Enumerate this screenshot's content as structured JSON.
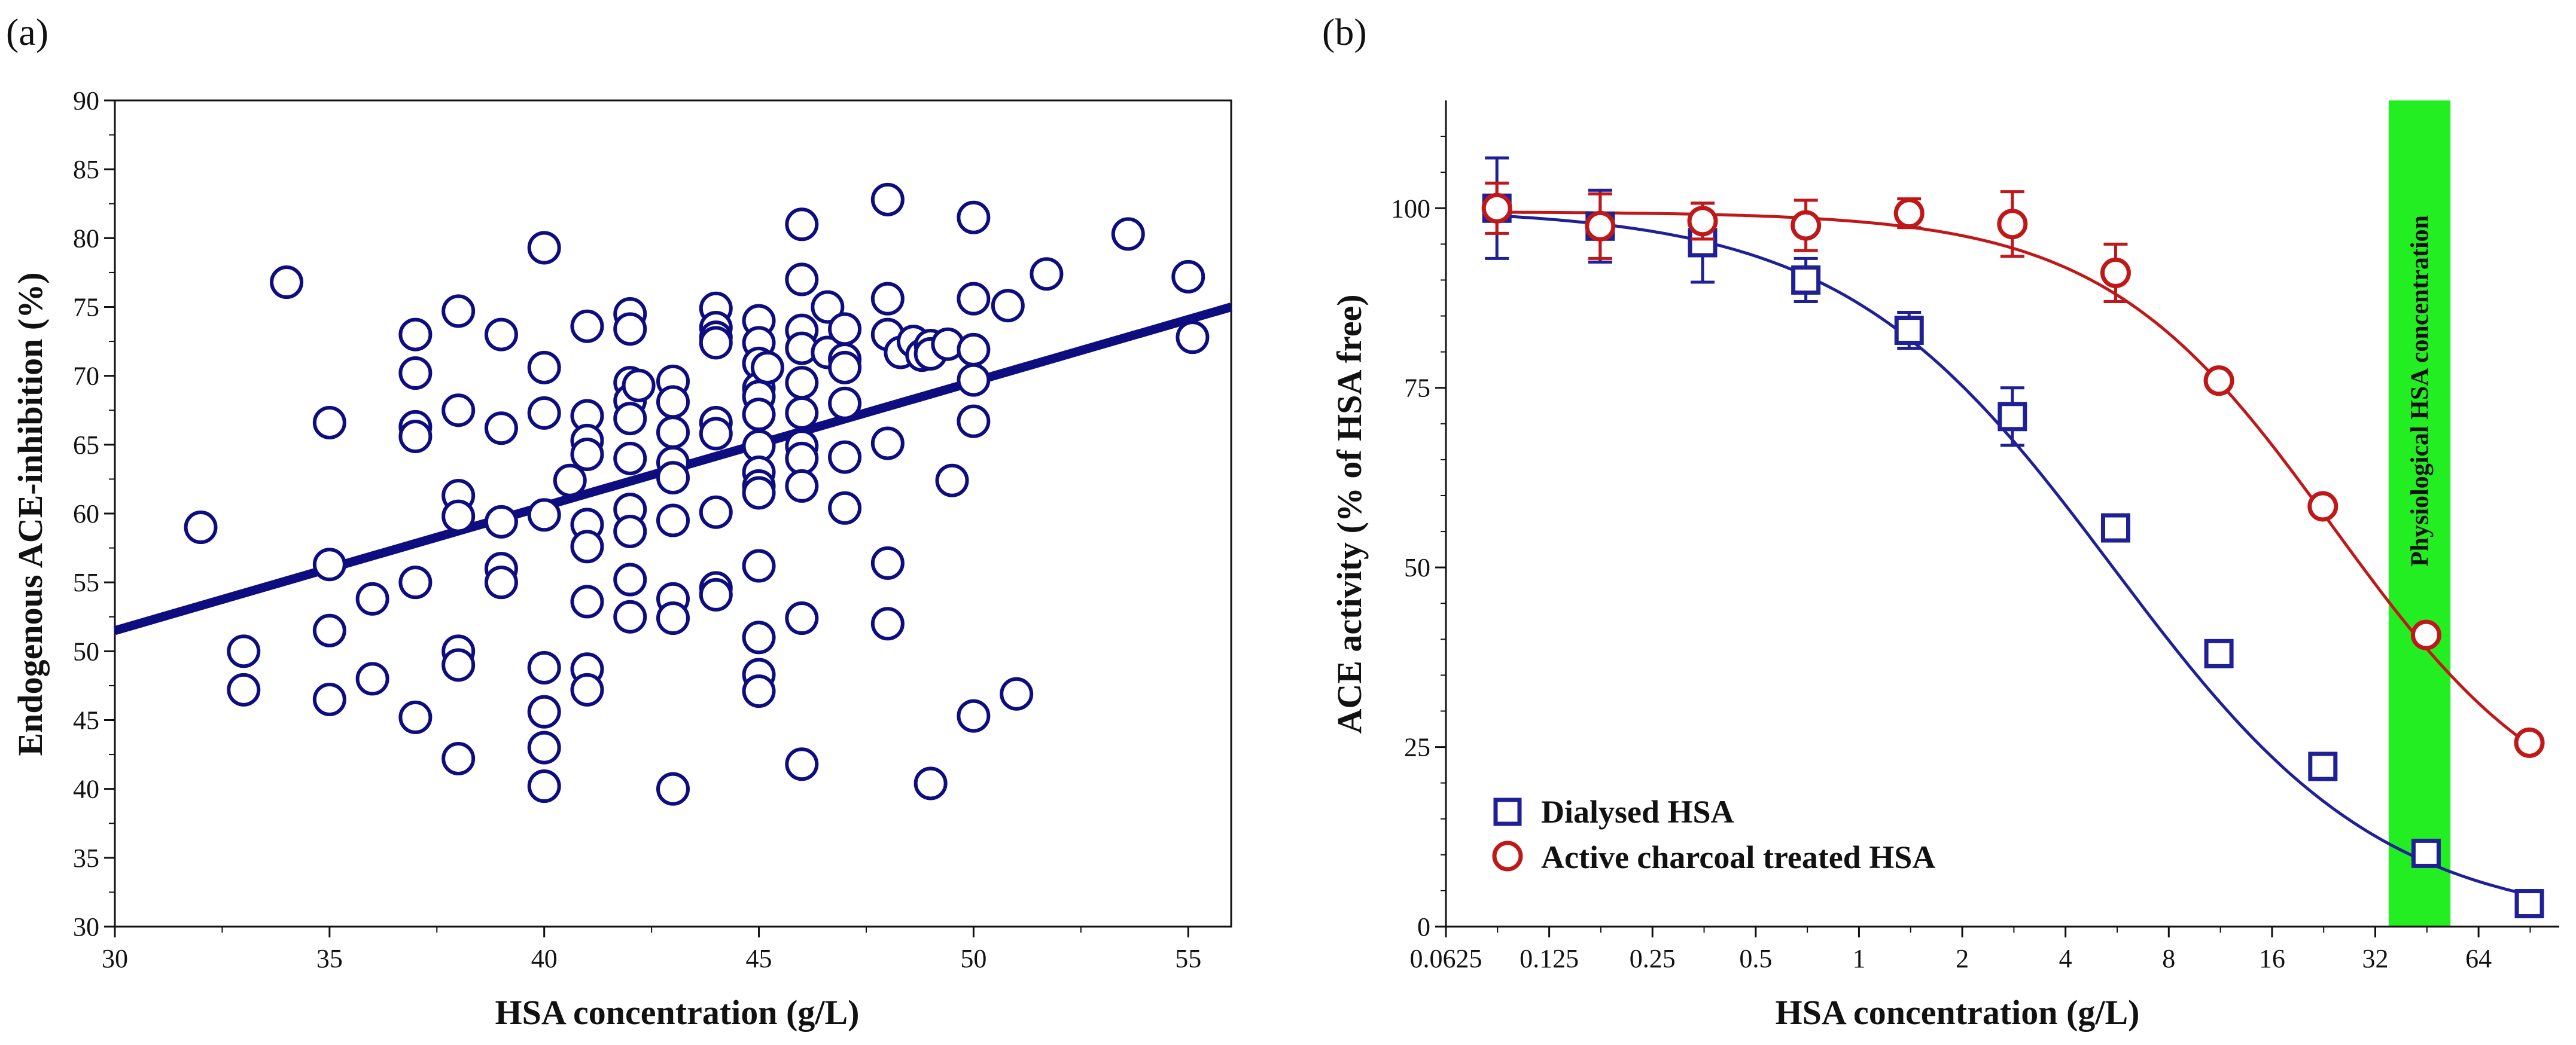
{
  "chart_data": [
    {
      "panel_label": "(a)",
      "type": "scatter",
      "xlabel": "HSA concentration (g/L)",
      "ylabel": "Endogenous ACE-inhibition (%)",
      "xlim": [
        30,
        56
      ],
      "ylim": [
        30,
        90
      ],
      "xticks": [
        30,
        35,
        40,
        45,
        50,
        55
      ],
      "yticks": [
        30,
        35,
        40,
        45,
        50,
        55,
        60,
        65,
        70,
        75,
        80,
        85,
        90
      ],
      "marker_color": "#0d0d80",
      "regression_line": {
        "x": [
          30,
          56
        ],
        "y": [
          51.5,
          75.0
        ]
      },
      "points": [
        [
          32,
          59
        ],
        [
          33,
          50
        ],
        [
          33,
          47.2
        ],
        [
          34,
          76.8
        ],
        [
          35,
          66.6
        ],
        [
          35,
          56.3
        ],
        [
          35,
          51.5
        ],
        [
          35,
          46.5
        ],
        [
          36,
          53.8
        ],
        [
          36,
          48
        ],
        [
          37,
          73
        ],
        [
          37,
          70.2
        ],
        [
          37,
          66.3
        ],
        [
          37,
          65.6
        ],
        [
          37,
          55
        ],
        [
          37,
          45.2
        ],
        [
          38,
          74.7
        ],
        [
          38,
          67.5
        ],
        [
          38,
          61.3
        ],
        [
          38,
          59.8
        ],
        [
          38,
          50
        ],
        [
          38,
          49
        ],
        [
          38,
          42.2
        ],
        [
          39,
          73
        ],
        [
          39,
          66.2
        ],
        [
          39,
          59.4
        ],
        [
          39,
          56
        ],
        [
          39,
          55
        ],
        [
          40,
          79.3
        ],
        [
          40,
          70.6
        ],
        [
          40,
          67.3
        ],
        [
          40,
          59.9
        ],
        [
          40,
          48.8
        ],
        [
          40,
          45.6
        ],
        [
          40,
          43
        ],
        [
          40,
          40.2
        ],
        [
          40.6,
          62.4
        ],
        [
          41,
          73.6
        ],
        [
          41,
          67.1
        ],
        [
          41,
          65.3
        ],
        [
          41,
          64.3
        ],
        [
          41,
          59.2
        ],
        [
          41,
          57.6
        ],
        [
          41,
          53.6
        ],
        [
          41,
          48.7
        ],
        [
          41,
          47.2
        ],
        [
          42,
          74.5
        ],
        [
          42,
          73.4
        ],
        [
          42,
          69.5
        ],
        [
          42,
          68.2
        ],
        [
          42,
          66.9
        ],
        [
          42,
          64
        ],
        [
          42,
          60.3
        ],
        [
          42,
          58.7
        ],
        [
          42,
          55.2
        ],
        [
          42,
          52.5
        ],
        [
          42.2,
          69.3
        ],
        [
          43,
          69.6
        ],
        [
          43,
          68.1
        ],
        [
          43,
          65.9
        ],
        [
          43,
          63.7
        ],
        [
          43,
          62.6
        ],
        [
          43,
          59.5
        ],
        [
          43,
          53.8
        ],
        [
          43,
          52.4
        ],
        [
          43,
          40
        ],
        [
          44,
          74.9
        ],
        [
          44,
          73.5
        ],
        [
          44,
          72.8
        ],
        [
          44,
          72.4
        ],
        [
          44,
          66.6
        ],
        [
          44,
          65.8
        ],
        [
          44,
          60.1
        ],
        [
          44,
          54.6
        ],
        [
          44,
          54.1
        ],
        [
          45,
          74
        ],
        [
          45,
          72.4
        ],
        [
          45,
          70.9
        ],
        [
          45,
          69.1
        ],
        [
          45,
          68.5
        ],
        [
          45,
          67.2
        ],
        [
          45,
          64.9
        ],
        [
          45,
          63
        ],
        [
          45,
          62
        ],
        [
          45,
          61.5
        ],
        [
          45,
          56.2
        ],
        [
          45,
          51
        ],
        [
          45,
          48.3
        ],
        [
          45,
          47.1
        ],
        [
          45.2,
          70.6
        ],
        [
          46,
          81
        ],
        [
          46,
          77
        ],
        [
          46,
          73.3
        ],
        [
          46,
          72
        ],
        [
          46,
          69.5
        ],
        [
          46,
          67.3
        ],
        [
          46,
          64.9
        ],
        [
          46,
          64
        ],
        [
          46,
          62
        ],
        [
          46,
          52.4
        ],
        [
          46,
          41.8
        ],
        [
          46.6,
          71.7
        ],
        [
          46.6,
          75
        ],
        [
          47,
          73.4
        ],
        [
          47,
          71.2
        ],
        [
          47,
          70.6
        ],
        [
          47,
          68
        ],
        [
          47,
          64.1
        ],
        [
          47,
          60.4
        ],
        [
          48,
          82.8
        ],
        [
          48,
          75.6
        ],
        [
          48,
          73
        ],
        [
          48,
          65.1
        ],
        [
          48,
          56.4
        ],
        [
          48,
          52
        ],
        [
          48.3,
          71.7
        ],
        [
          48.6,
          72.5
        ],
        [
          48.8,
          71.5
        ],
        [
          49,
          72.2
        ],
        [
          49,
          71.6
        ],
        [
          49,
          40.4
        ],
        [
          49.4,
          72.3
        ],
        [
          49.5,
          62.4
        ],
        [
          50,
          81.5
        ],
        [
          50,
          75.6
        ],
        [
          50,
          71.9
        ],
        [
          50,
          69.7
        ],
        [
          50,
          66.7
        ],
        [
          50,
          45.3
        ],
        [
          50.8,
          75.1
        ],
        [
          51,
          46.9
        ],
        [
          51.7,
          77.4
        ],
        [
          53.6,
          80.3
        ],
        [
          55,
          77.2
        ],
        [
          55.1,
          72.8
        ]
      ]
    },
    {
      "panel_label": "(b)",
      "type": "line",
      "x_scale": "log2",
      "xlabel": "HSA concentration (g/L)",
      "ylabel": "ACE activity (% of HSA free)",
      "xlim": [
        0.0625,
        110
      ],
      "ylim": [
        0,
        115
      ],
      "xticks": [
        0.0625,
        0.125,
        0.25,
        0.5,
        1,
        2,
        4,
        8,
        16,
        32,
        64
      ],
      "xtick_labels": [
        "0.0625",
        "0.125",
        "0.25",
        "0.5",
        "1",
        "2",
        "4",
        "8",
        "16",
        "32",
        "64"
      ],
      "yticks": [
        0,
        25,
        50,
        75,
        100
      ],
      "band": {
        "x_range": [
          35,
          53
        ],
        "color": "#22ee22",
        "label": "Physiological HSA concentration"
      },
      "series": [
        {
          "name": "Dialysed HSA",
          "color": "#1f1f96",
          "marker": "square",
          "x": [
            0.088,
            0.176,
            0.35,
            0.7,
            1.4,
            2.8,
            5.6,
            11.2,
            22.5,
            45,
            90
          ],
          "y": [
            100,
            97.5,
            95.2,
            90,
            83,
            71,
            55.5,
            38,
            22.3,
            10.2,
            3.2
          ],
          "err": [
            7,
            5,
            5.5,
            3,
            2.5,
            4,
            0,
            0,
            0,
            0,
            0
          ],
          "fit": {
            "top": 100,
            "bottom": 0,
            "ec50": 5.5,
            "hill": 1.1
          }
        },
        {
          "name": "Active charcoal treated HSA",
          "color": "#c01818",
          "marker": "circle",
          "x": [
            0.088,
            0.176,
            0.35,
            0.7,
            1.4,
            2.8,
            5.6,
            11.2,
            22.5,
            45,
            90
          ],
          "y": [
            100,
            97.5,
            98.2,
            97.6,
            99.3,
            97.8,
            91,
            76,
            58.5,
            40.6,
            25.6
          ],
          "err": [
            3.5,
            4.5,
            2.5,
            3.5,
            2,
            4.5,
            4,
            0,
            0,
            0,
            0
          ],
          "fit": {
            "top": 99.5,
            "bottom": 12,
            "ec50": 24,
            "hill": 1.3
          }
        }
      ]
    }
  ]
}
